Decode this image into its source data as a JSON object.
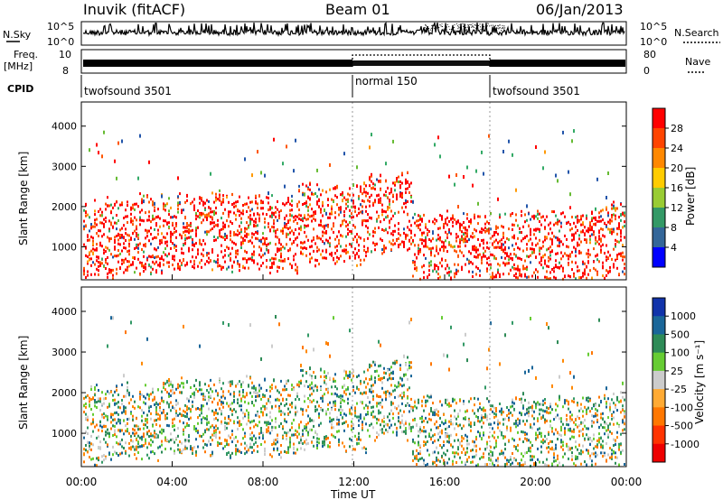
{
  "header": {
    "station": "Inuvik (fitACF)",
    "beam": "Beam 01",
    "date": "06/Jan/2013"
  },
  "top_panels": {
    "nsky_label": "N.Sky",
    "nsky_ticks": [
      "10^5",
      "10^0"
    ],
    "nsearch_label": "N.Search",
    "freq_label_1": "Freq.",
    "freq_label_2": "[MHz]",
    "freq_ticks": [
      "10",
      "8"
    ],
    "nave_ticks": [
      "80",
      "0"
    ],
    "nave_label": "Nave",
    "cpid_label": "CPID",
    "cpid_segments": [
      {
        "label": "twofsound 3501",
        "start_hour": 0,
        "end_hour": 12
      },
      {
        "label": "normal 150",
        "start_hour": 12,
        "end_hour": 18
      },
      {
        "label": "twofsound 3501",
        "start_hour": 18,
        "end_hour": 24
      }
    ]
  },
  "chart_data": [
    {
      "type": "heatmap",
      "title": "Power",
      "ylabel": "Slant Range [km]",
      "xlabel": "Time UT",
      "xlim": [
        0,
        24
      ],
      "ylim": [
        180,
        4600
      ],
      "yticks": [
        "1000",
        "2000",
        "3000",
        "4000"
      ],
      "colorbar": {
        "label": "Power [dB]",
        "ticks": [
          "28",
          "24",
          "20",
          "16",
          "12",
          "8",
          "4"
        ],
        "colors": [
          "#ff0000",
          "#ff4400",
          "#ff8800",
          "#ffcc00",
          "#99cc33",
          "#339966",
          "#336699",
          "#0000ff"
        ]
      }
    },
    {
      "type": "heatmap",
      "title": "Velocity",
      "ylabel": "Slant Range [km]",
      "xlabel": "Time UT",
      "xlim": [
        0,
        24
      ],
      "ylim": [
        180,
        4600
      ],
      "yticks": [
        "1000",
        "2000",
        "3000",
        "4000"
      ],
      "colorbar": {
        "label": "Velocity [m s⁻¹]",
        "ticks": [
          "1000",
          "500",
          "100",
          "25",
          "-25",
          "-100",
          "-500",
          "-1000"
        ],
        "colors": [
          "#1133aa",
          "#1a6699",
          "#2e8b57",
          "#66cc33",
          "#cccccc",
          "#ffaa33",
          "#ff7700",
          "#ff3300",
          "#ee0000"
        ]
      }
    }
  ],
  "x_axis": {
    "ticks": [
      "00:00",
      "04:00",
      "08:00",
      "12:00",
      "16:00",
      "20:00",
      "00:00"
    ],
    "label": "Time UT"
  }
}
